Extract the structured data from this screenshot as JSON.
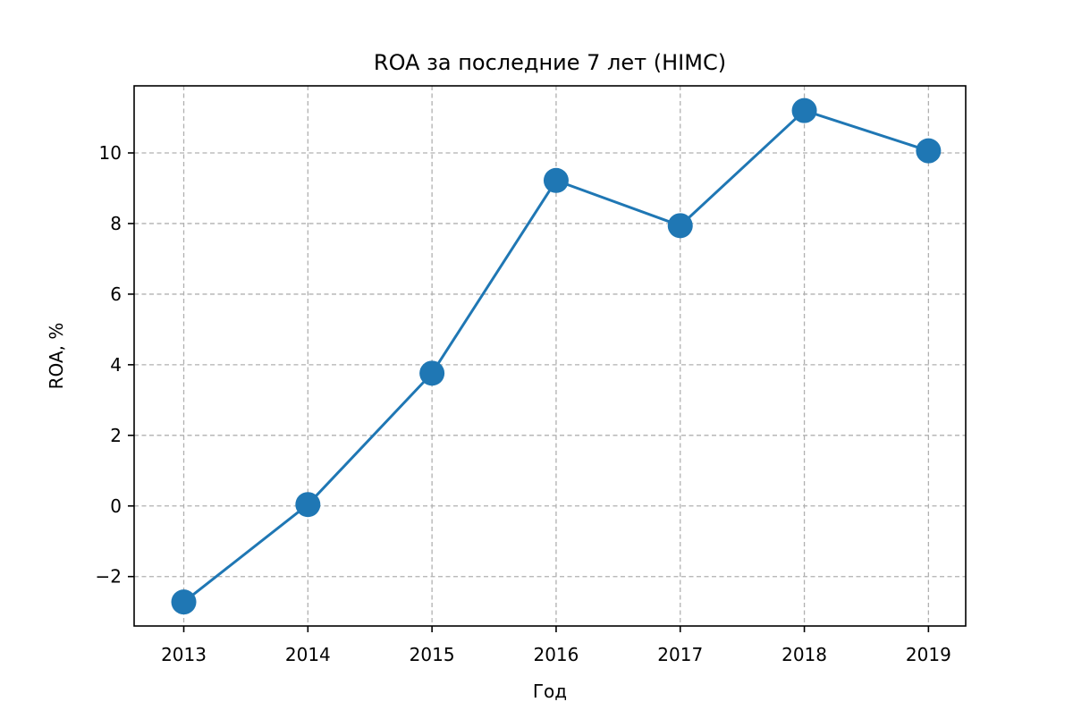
{
  "chart_data": {
    "type": "line",
    "title": "ROA за последние 7 лет (HIMC)",
    "xlabel": "Год",
    "ylabel": "ROA, %",
    "x": [
      2013,
      2014,
      2015,
      2016,
      2017,
      2018,
      2019
    ],
    "x_tick_labels": [
      "2013",
      "2014",
      "2015",
      "2016",
      "2017",
      "2018",
      "2019"
    ],
    "y_ticks": [
      -2,
      0,
      2,
      4,
      6,
      8,
      10
    ],
    "y_tick_labels": [
      "−2",
      "0",
      "2",
      "4",
      "6",
      "8",
      "10"
    ],
    "xlim": [
      2012.6,
      2019.3
    ],
    "ylim": [
      -3.4,
      11.9
    ],
    "grid": true,
    "legend": "none",
    "series": [
      {
        "values": [
          -2.72,
          0.04,
          3.76,
          9.22,
          7.94,
          11.2,
          10.06
        ],
        "color": "#1f77b4",
        "marker": "circle"
      }
    ]
  }
}
